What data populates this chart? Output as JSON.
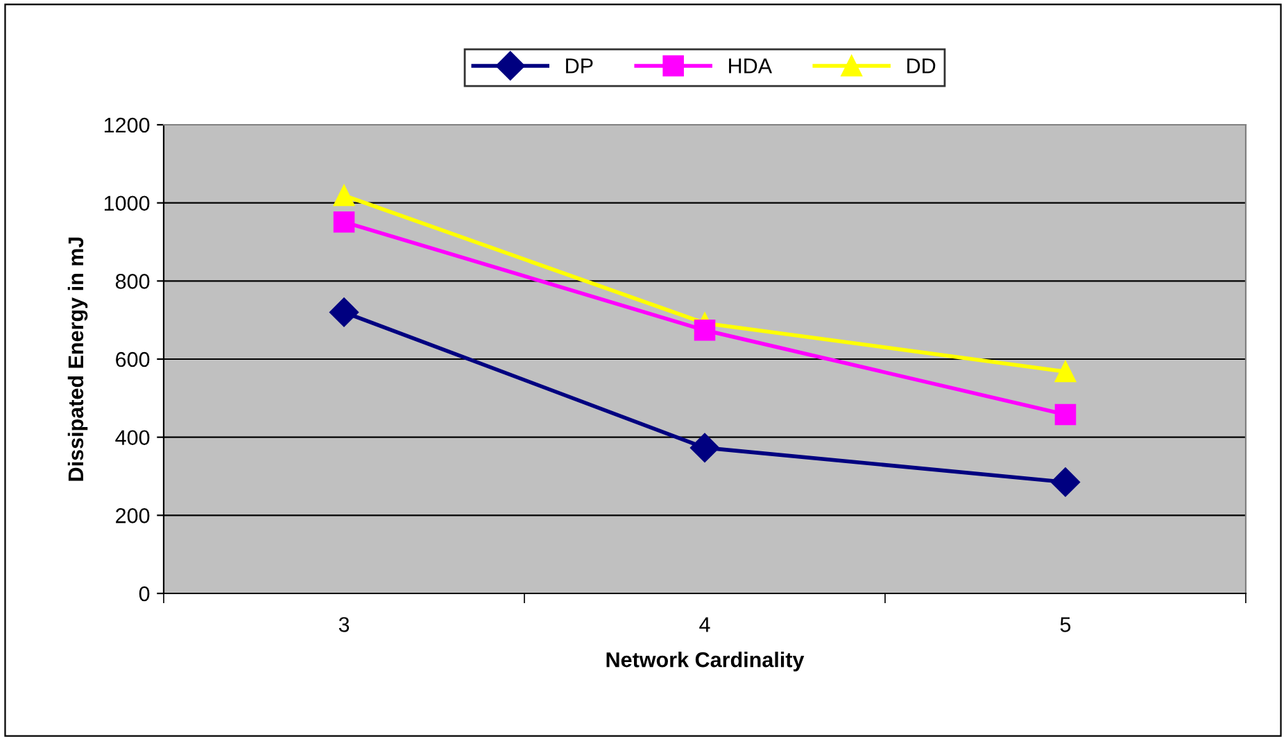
{
  "chart_data": {
    "type": "line",
    "xlabel": "Network Cardinality",
    "ylabel": "Dissipated Energy in mJ",
    "categories": [
      "3",
      "4",
      "5"
    ],
    "series": [
      {
        "name": "DP",
        "color": "#000080",
        "marker": "diamond",
        "values": [
          720,
          373,
          285
        ]
      },
      {
        "name": "HDA",
        "color": "#ff00ff",
        "marker": "square",
        "values": [
          951,
          674,
          458
        ]
      },
      {
        "name": "DD",
        "color": "#ffff00",
        "marker": "triangle",
        "values": [
          1019,
          692,
          568
        ]
      }
    ],
    "ylim": [
      0,
      1200
    ],
    "yticks": [
      0,
      200,
      400,
      600,
      800,
      1000,
      1200
    ],
    "grid": "y",
    "legend": "top",
    "line_style": "solid"
  }
}
